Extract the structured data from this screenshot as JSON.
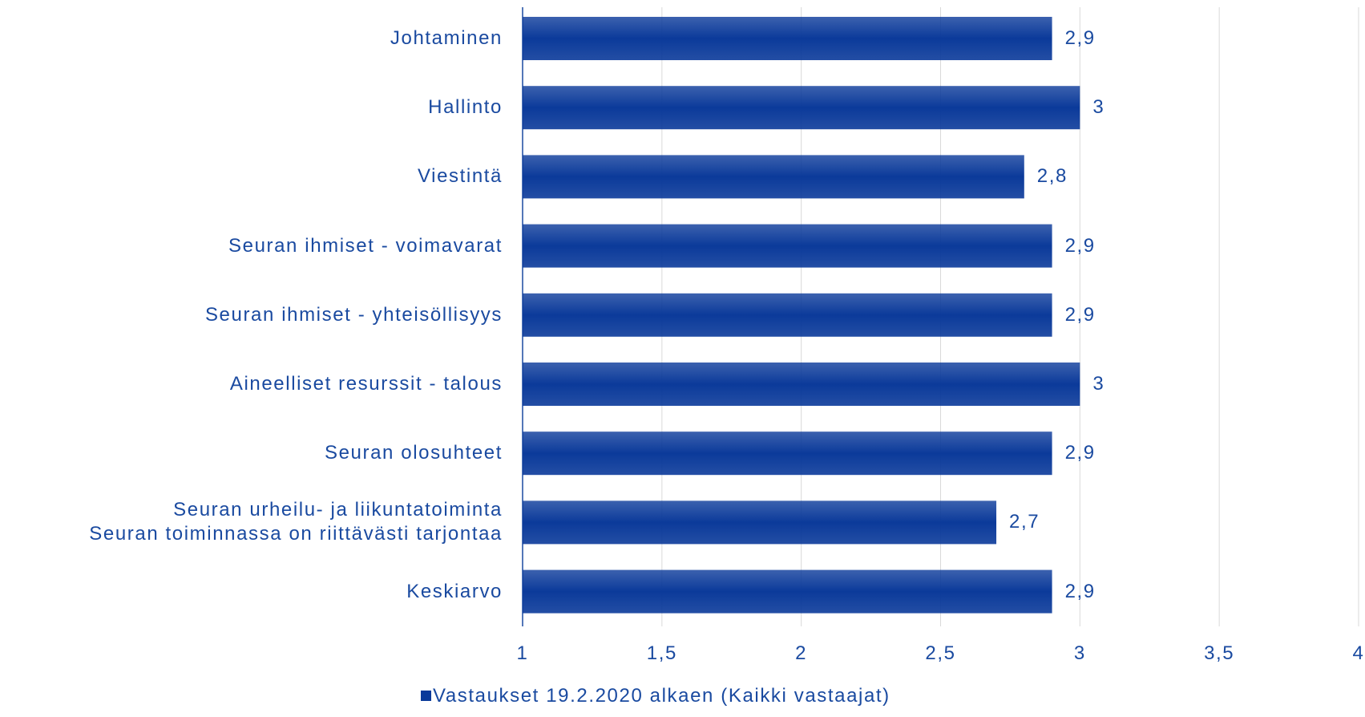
{
  "chart_data": {
    "type": "hbar",
    "categories": [
      "Johtaminen",
      "Hallinto",
      "Viestintä",
      "Seuran ihmiset - voimavarat",
      "Seuran ihmiset - yhteisöllisyys",
      "Aineelliset resurssit - talous",
      "Seuran olosuhteet",
      "Seuran urheilu- ja liikuntatoiminta\nSeuran toiminnassa on riittävästi tarjontaa",
      "Keskiarvo"
    ],
    "series": [
      {
        "name": "Vastaukset 19.2.2020 alkaen (Kaikki vastaajat)",
        "color": "#0b3a9a",
        "values": [
          2.9,
          3,
          2.8,
          2.9,
          2.9,
          3,
          2.9,
          2.7,
          2.9
        ],
        "value_labels": [
          "2,9",
          "3",
          "2,8",
          "2,9",
          "2,9",
          "3",
          "2,9",
          "2,7",
          "2,9"
        ]
      }
    ],
    "xlim": [
      1,
      4
    ],
    "xticks": [
      1,
      {
        "value": 1.5,
        "label": "1,5"
      },
      2,
      {
        "value": 2.5,
        "label": "2,5"
      },
      3,
      {
        "value": 3.5,
        "label": "3,5"
      },
      4
    ],
    "grid": true,
    "legend": "bottom"
  }
}
